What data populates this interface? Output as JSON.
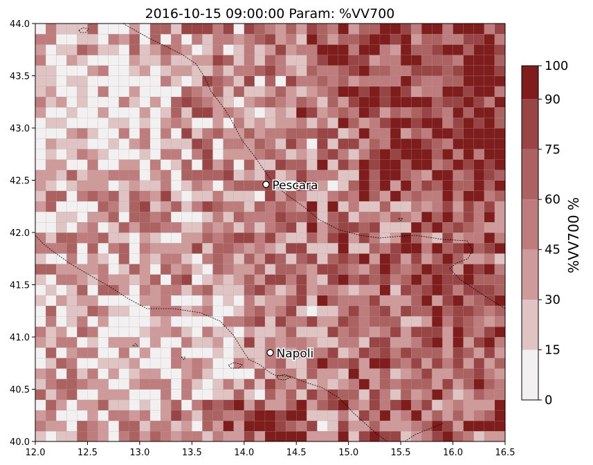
{
  "title": "2016-10-15 09:00:00 Param: %VV700",
  "colorbar": {
    "label": "%VV700  %",
    "ticks": [
      "0",
      "15",
      "30",
      "45",
      "60",
      "75",
      "90",
      "100"
    ],
    "levels": [
      0,
      15,
      30,
      45,
      60,
      75,
      90,
      100
    ],
    "colors": [
      "#f2f0f0",
      "#e0c3c3",
      "#cf9a9a",
      "#bf7c7c",
      "#ad6262",
      "#994545",
      "#7f1d1d",
      "#6b0000"
    ]
  },
  "x_ticks": [
    "12.0",
    "12.5",
    "13.0",
    "13.5",
    "14.0",
    "14.5",
    "15.0",
    "15.5",
    "16.0",
    "16.5"
  ],
  "y_ticks": [
    "40.0",
    "40.5",
    "41.0",
    "41.5",
    "42.0",
    "42.5",
    "43.0",
    "43.5",
    "44.0"
  ],
  "cities": [
    {
      "name": "Pescara",
      "lon": 14.21,
      "lat": 42.46
    },
    {
      "name": "Napoli",
      "lon": 14.25,
      "lat": 40.85
    }
  ],
  "chart_data": {
    "type": "heatmap",
    "title": "2016-10-15 09:00:00 Param: %VV700",
    "xlim": [
      12.0,
      16.5
    ],
    "ylim": [
      40.0,
      44.0
    ],
    "grid_resolution_deg": 0.1,
    "value_range": [
      0,
      100
    ],
    "colorbar_label": "%VV700  %",
    "colormap": "reds-binned"
  }
}
